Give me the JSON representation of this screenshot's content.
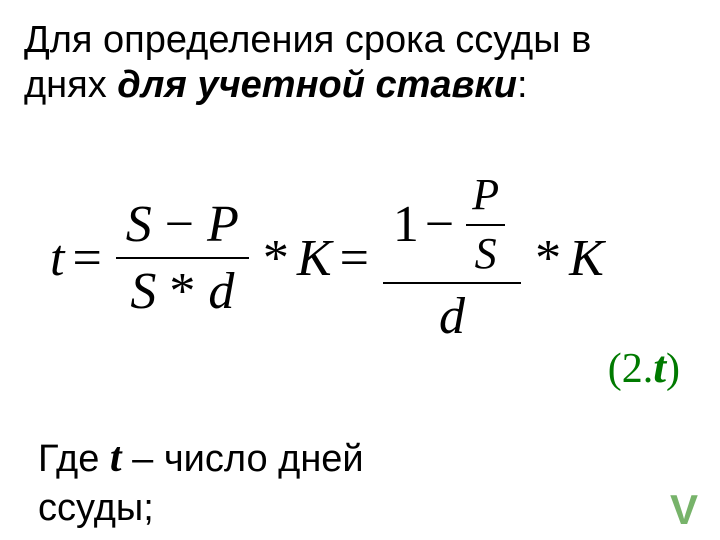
{
  "title": {
    "line_plain_1": "Для определения срока ссуды в",
    "line_plain_2_prefix": "днях ",
    "emph": "для учетной ставки",
    "colon": ":"
  },
  "formula": {
    "t": "t",
    "eq1": "=",
    "f1_num_S": "S",
    "f1_num_minus": "−",
    "f1_num_P": "P",
    "f1_den_S": "S",
    "f1_den_star": "*",
    "f1_den_d": "d",
    "star1": "*",
    "K1": "K",
    "eq2": "=",
    "f2_num_one": "1",
    "f2_num_minus": "−",
    "f2_inner_num": "P",
    "f2_inner_den": "S",
    "f2_den_d": "d",
    "star2": "*",
    "K2": "K"
  },
  "eqref": {
    "open": "(",
    "num": "2.",
    "t": "t",
    "close": ")"
  },
  "legend": {
    "prefix": "Где ",
    "t": "t",
    "rest_line1": " – число дней",
    "line2": "ссуды;"
  },
  "corner": "V",
  "style": {
    "accent_green": "#007a00",
    "corner_green": "#77b36a",
    "text_color": "#000000",
    "background": "#ffffff"
  }
}
